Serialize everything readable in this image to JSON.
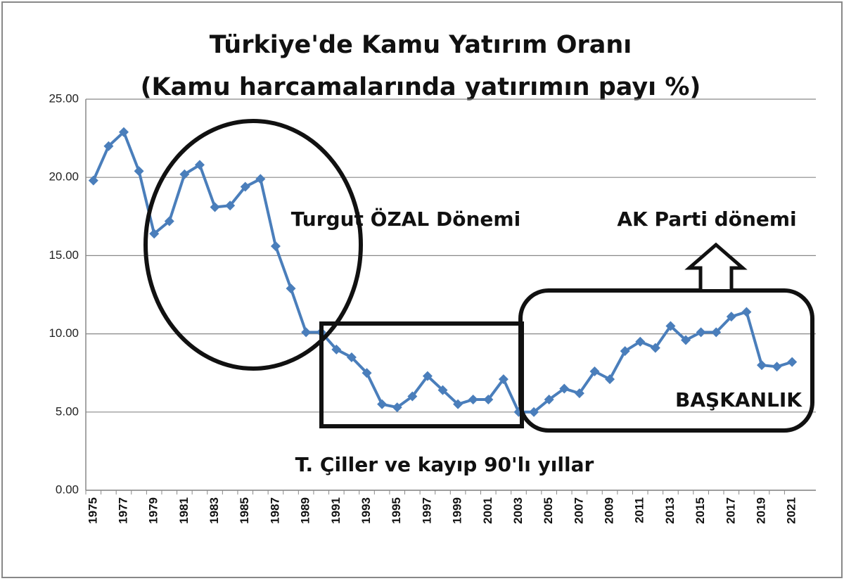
{
  "chart_data": {
    "type": "line",
    "title": "Türkiye'de Kamu Yatırım Oranı",
    "subtitle": "(Kamu harcamalarında yatırımın payı %)",
    "categories": [
      "1975",
      null,
      "1977",
      null,
      "1979",
      null,
      "1981",
      null,
      "1983",
      null,
      "1985",
      null,
      "1987",
      null,
      "1989",
      null,
      "1991",
      null,
      "1993",
      null,
      "1995",
      null,
      "1997",
      null,
      "1999",
      null,
      "2001",
      null,
      "2003",
      null,
      "2005",
      null,
      "2007",
      null,
      "2009",
      null,
      "2011",
      null,
      "2013",
      null,
      "2015",
      null,
      "2017",
      null,
      "2019",
      null,
      "2021"
    ],
    "series": [
      {
        "color": "#4a7ebb",
        "values": [
          19.8,
          22.0,
          22.9,
          20.4,
          16.4,
          17.2,
          20.2,
          20.8,
          18.1,
          18.2,
          19.4,
          19.9,
          15.6,
          12.9,
          10.1,
          10.1,
          9.0,
          8.5,
          7.5,
          5.5,
          5.3,
          6.0,
          7.3,
          6.4,
          5.5,
          5.8,
          5.8,
          7.1,
          5.0,
          5.0,
          5.8,
          6.5,
          6.2,
          7.6,
          7.1,
          8.9,
          9.5,
          9.1,
          10.5,
          9.6,
          10.1,
          10.1,
          11.1,
          11.4,
          8.0,
          7.9,
          8.2
        ]
      }
    ],
    "ylim": [
      0,
      25
    ],
    "yticks": [
      {
        "value": 0,
        "label": "0.00"
      },
      {
        "value": 5,
        "label": "5.00"
      },
      {
        "value": 10,
        "label": "10.00"
      },
      {
        "value": 15,
        "label": "15.00"
      },
      {
        "value": 20,
        "label": "20.00"
      },
      {
        "value": 25,
        "label": "25.00"
      }
    ],
    "grid": true,
    "annotations": [
      "Turgut ÖZAL Dönemi",
      "AK Parti dönemi",
      "BAŞKANLIK",
      "T. Çiller ve kayıp 90'lı yıllar"
    ]
  }
}
